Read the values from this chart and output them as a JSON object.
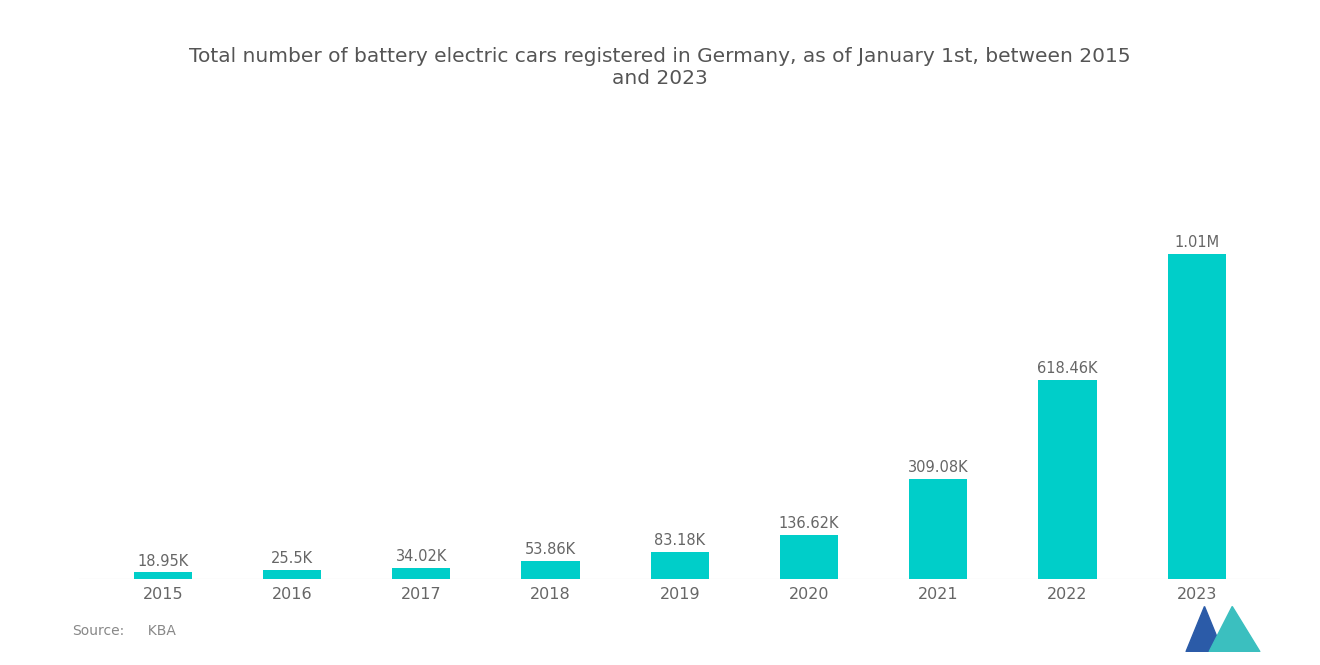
{
  "title": "Total number of battery electric cars registered in Germany, as of January 1st, between 2015\nand 2023",
  "categories": [
    "2015",
    "2016",
    "2017",
    "2018",
    "2019",
    "2020",
    "2021",
    "2022",
    "2023"
  ],
  "values": [
    18950,
    25500,
    34020,
    53860,
    83180,
    136620,
    309080,
    618460,
    1010000
  ],
  "labels": [
    "18.95K",
    "25.5K",
    "34.02K",
    "53.86K",
    "83.18K",
    "136.62K",
    "309.08K",
    "618.46K",
    "1.01M"
  ],
  "bar_color": "#00CEC9",
  "background_color": "#FFFFFF",
  "title_fontsize": 14.5,
  "label_fontsize": 10.5,
  "tick_fontsize": 11.5,
  "source_label": "Source:",
  "source_value": "  KBA",
  "ylim": [
    0,
    1200000
  ]
}
